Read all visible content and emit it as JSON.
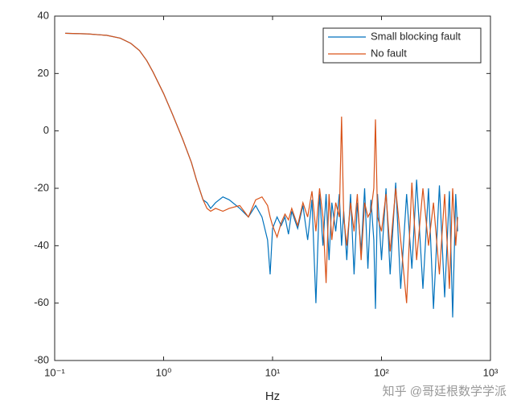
{
  "chart_data": {
    "type": "line",
    "xlabel": "Hz",
    "xscale": "log",
    "xlim": [
      0.1,
      1000
    ],
    "xticks": [
      {
        "value": 0.1,
        "label": "10⁻¹"
      },
      {
        "value": 1,
        "label": "10⁰"
      },
      {
        "value": 10,
        "label": "10¹"
      },
      {
        "value": 100,
        "label": "10²"
      },
      {
        "value": 1000,
        "label": "10³"
      }
    ],
    "ylim": [
      -80,
      40
    ],
    "yticks": [
      -80,
      -60,
      -40,
      -20,
      0,
      20,
      40
    ],
    "legend": "upper right",
    "watermark": "知乎 @哥廷根数学学派",
    "x": [
      0.125,
      0.2,
      0.3,
      0.4,
      0.5,
      0.6,
      0.7,
      0.8,
      1,
      1.2,
      1.5,
      1.8,
      2,
      2.3,
      2.5,
      2.7,
      3,
      3.5,
      4,
      5,
      6,
      7,
      8,
      9,
      9.5,
      10,
      11,
      12,
      13,
      14,
      15,
      17,
      19,
      21,
      23,
      25,
      27,
      29,
      31,
      33,
      35,
      38,
      41,
      43,
      45,
      48,
      52,
      56,
      60,
      65,
      70,
      75,
      80,
      85,
      88,
      92,
      100,
      110,
      120,
      135,
      150,
      170,
      190,
      210,
      240,
      270,
      300,
      340,
      380,
      420,
      450,
      480,
      500
    ],
    "series": [
      {
        "name": "Small blocking fault",
        "color": "#0072bd",
        "values": [
          34,
          33.8,
          33.3,
          32.3,
          30.5,
          28,
          24.5,
          20.5,
          13,
          6,
          -3,
          -11,
          -17,
          -24,
          -25,
          -27,
          -25,
          -23,
          -24,
          -27,
          -30,
          -26,
          -30,
          -38,
          -50,
          -34,
          -30,
          -33,
          -30,
          -36,
          -28,
          -34,
          -26,
          -38,
          -24,
          -60,
          -22,
          -40,
          -22,
          -45,
          -25,
          -35,
          -22,
          -40,
          -28,
          -45,
          -22,
          -50,
          -25,
          -42,
          -20,
          -48,
          -24,
          -38,
          -62,
          -22,
          -45,
          -20,
          -50,
          -18,
          -55,
          -22,
          -48,
          -17,
          -55,
          -20,
          -62,
          -19,
          -58,
          -21,
          -65,
          -22,
          -35
        ]
      },
      {
        "name": "No fault",
        "color": "#d95319",
        "values": [
          34,
          33.8,
          33.3,
          32.3,
          30.5,
          28,
          24.5,
          20.5,
          13,
          6,
          -3,
          -11,
          -17,
          -24,
          -27,
          -28,
          -27,
          -28,
          -27,
          -26,
          -30,
          -24,
          -23,
          -26,
          -30,
          -33,
          -37,
          -32,
          -29,
          -31,
          -27,
          -33,
          -25,
          -30,
          -21,
          -35,
          -20,
          -30,
          -53,
          -22,
          -38,
          -25,
          -30,
          5,
          -30,
          -40,
          -25,
          -35,
          -22,
          -45,
          -25,
          -30,
          -28,
          -20,
          4,
          -30,
          -35,
          -22,
          -42,
          -20,
          -38,
          -60,
          -18,
          -45,
          -20,
          -40,
          -25,
          -50,
          -22,
          -55,
          -20,
          -40,
          -30
        ]
      }
    ]
  }
}
